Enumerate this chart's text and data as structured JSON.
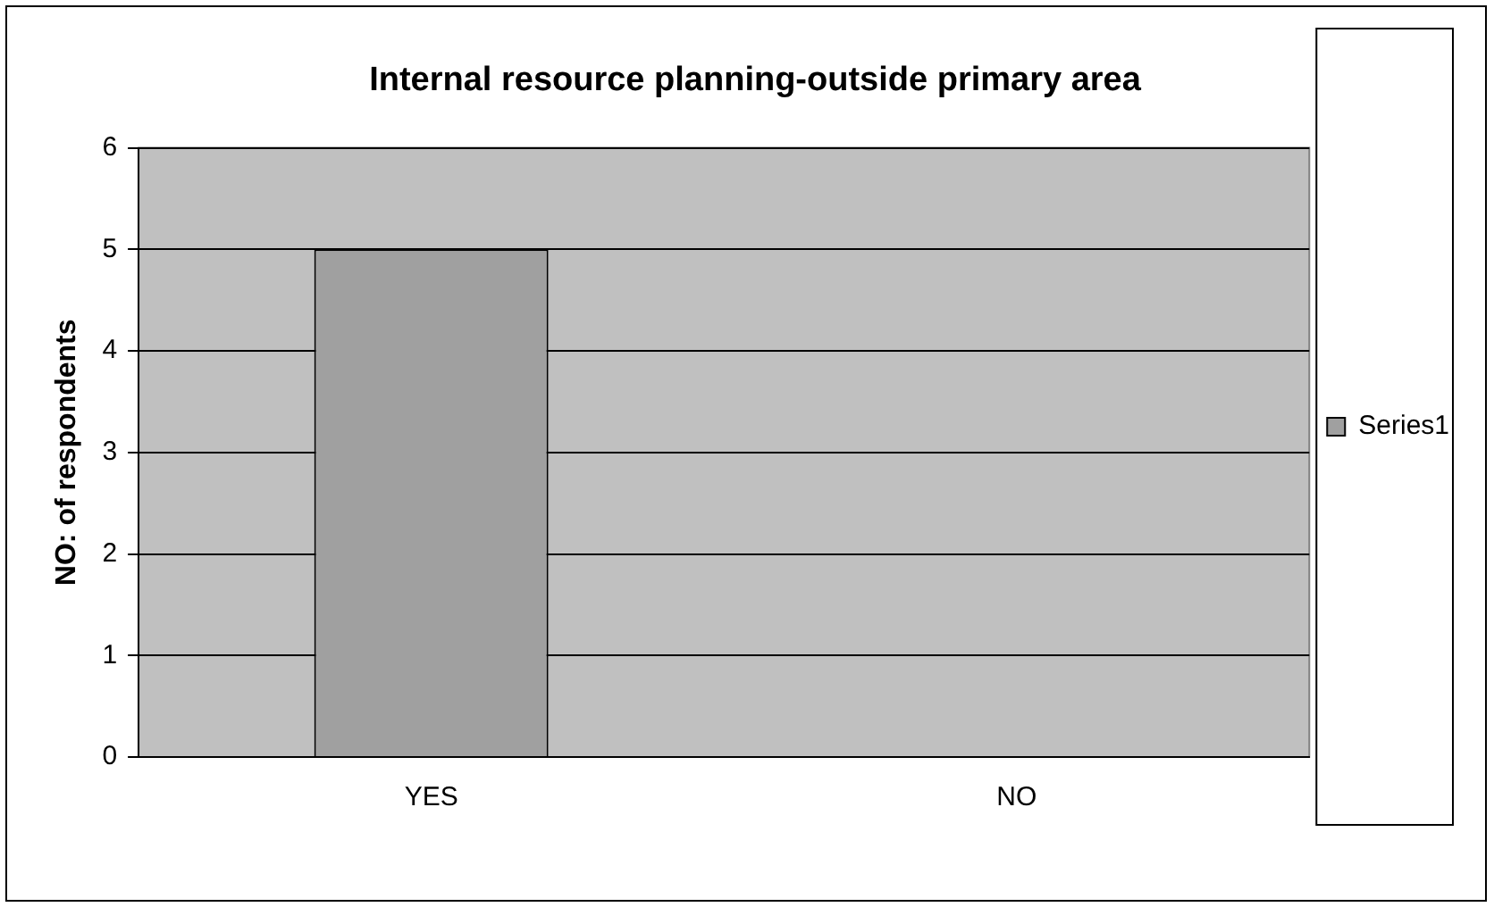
{
  "chart_data": {
    "type": "bar",
    "title": "Internal resource planning-outside primary area",
    "ylabel": "NO: of respondents",
    "categories": [
      "YES",
      "NO"
    ],
    "series": [
      {
        "name": "Series1",
        "color": "#a0a0a0",
        "values": [
          5,
          0
        ]
      }
    ],
    "ylim": [
      0,
      6
    ],
    "yticks": [
      0,
      1,
      2,
      3,
      4,
      5,
      6
    ],
    "grid": "y",
    "legend": "right"
  }
}
